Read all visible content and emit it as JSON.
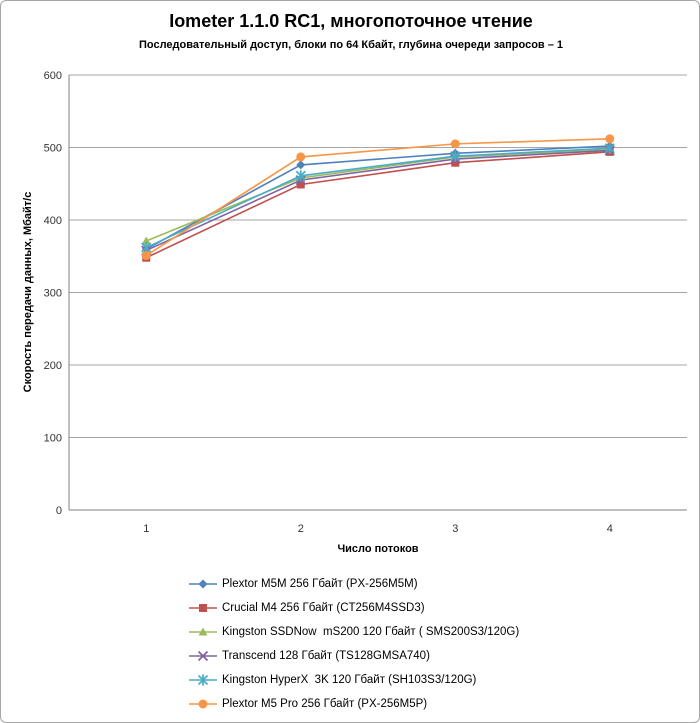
{
  "chart_data": {
    "type": "line",
    "title": "Iometer 1.1.0 RC1, многопоточное чтение",
    "subtitle": "Последовательный  доступ, блоки по 64 Кбайт,  глубина очереди запросов  – 1",
    "xlabel": "Число потоков",
    "ylabel": "Скорость передачи данных, Мбайт/с",
    "categories": [
      "1",
      "2",
      "3",
      "4"
    ],
    "ylim": [
      0,
      600
    ],
    "yticks": [
      0,
      100,
      200,
      300,
      400,
      500,
      600
    ],
    "grid": true,
    "legend_position": "bottom",
    "axis_color": "#808080",
    "grid_color": "#a6a6a6",
    "tick_label_color": "#333333",
    "series": [
      {
        "name": "Plextor M5M 256 Гбайт (PX-256M5M)",
        "color": "#4F81BD",
        "marker": "diamond",
        "values": [
          360,
          476,
          492,
          502
        ]
      },
      {
        "name": "Crucial M4 256 Гбайт (CT256M4SSD3)",
        "color": "#C0504D",
        "marker": "square",
        "values": [
          348,
          449,
          479,
          494
        ]
      },
      {
        "name": "Kingston SSDNow  mS200 120 Гбайт ( SMS200S3/120G)",
        "color": "#9BBB59",
        "marker": "triangle",
        "values": [
          371,
          458,
          487,
          497
        ]
      },
      {
        "name": "Transcend 128 Гбайт (TS128GMSA740)",
        "color": "#8064A2",
        "marker": "x",
        "values": [
          358,
          455,
          484,
          496
        ]
      },
      {
        "name": "Kingston HyperX  3K 120 Гбайт (SH103S3/120G)",
        "color": "#4BACC6",
        "marker": "star",
        "values": [
          362,
          461,
          488,
          499
        ]
      },
      {
        "name": "Plextor M5 Pro 256 Гбайт (PX-256M5P)",
        "color": "#F79646",
        "marker": "circle",
        "values": [
          351,
          487,
          505,
          512
        ]
      }
    ]
  }
}
